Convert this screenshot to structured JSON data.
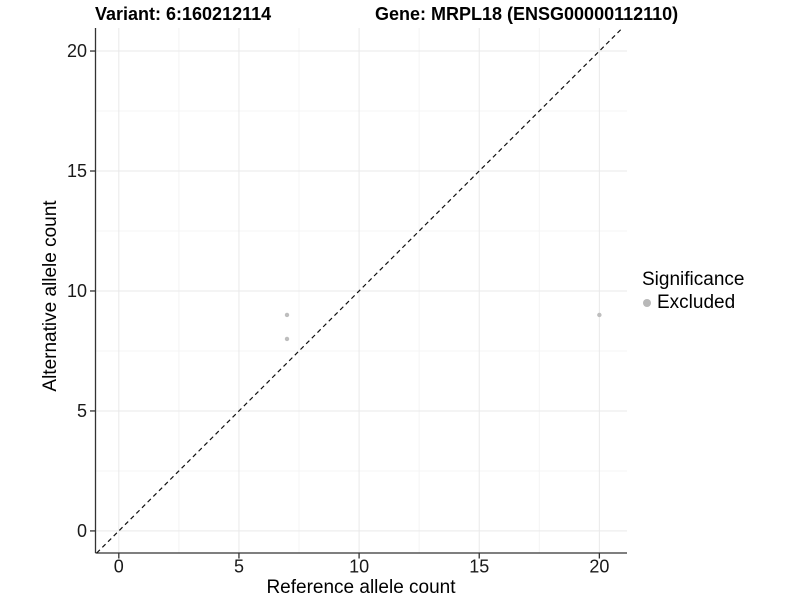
{
  "titles": {
    "variant": "Variant: 6:160212114",
    "gene": "Gene: MRPL18 (ENSG00000112110)"
  },
  "chart_data": {
    "type": "scatter",
    "title_left": "Variant: 6:160212114",
    "title_right": "Gene: MRPL18 (ENSG00000112110)",
    "xlabel": "Reference allele count",
    "ylabel": "Alternative allele count",
    "xlim": [
      -0.97,
      21.15
    ],
    "ylim": [
      -0.92,
      20.96
    ],
    "x_ticks": [
      0,
      5,
      10,
      15,
      20
    ],
    "y_ticks": [
      0,
      5,
      10,
      15,
      20
    ],
    "x_minor_ticks": [
      2.5,
      7.5,
      12.5,
      17.5
    ],
    "y_minor_ticks": [
      2.5,
      7.5,
      12.5,
      17.5
    ],
    "grid": "on",
    "series": [
      {
        "name": "Excluded",
        "color": "#bebebe",
        "point_radius": 2.2,
        "points": [
          [
            7,
            8
          ],
          [
            7,
            9
          ],
          [
            20,
            9
          ]
        ]
      }
    ],
    "reference_line": {
      "kind": "identity",
      "style": "dashed",
      "color": "#111111"
    },
    "legend": {
      "title": "Significance",
      "position": "right",
      "entries": [
        {
          "label": "Excluded",
          "color": "#b8b8b8"
        }
      ]
    },
    "colors": {
      "background": "#ffffff",
      "grid_major": "#e9e9e9",
      "grid_minor": "#f4f4f4",
      "axis_line": "#333333",
      "tick_text": "#1a1a1a"
    }
  }
}
